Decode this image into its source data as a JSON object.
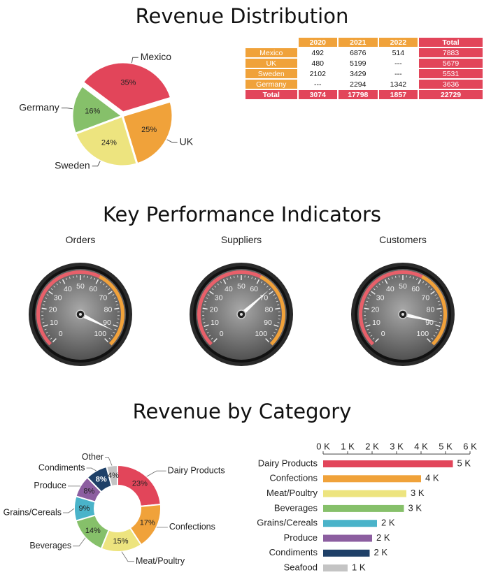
{
  "titles": {
    "revenue": "Revenue Distribution",
    "kpi": "Key Performance Indicators",
    "category": "Revenue by Category"
  },
  "chart_data": [
    {
      "type": "pie",
      "title": "Revenue Distribution",
      "slices": [
        {
          "label": "Mexico",
          "value": 35,
          "color": "#e2455a"
        },
        {
          "label": "UK",
          "value": 25,
          "color": "#f0a23a"
        },
        {
          "label": "Sweden",
          "value": 24,
          "color": "#ede47f"
        },
        {
          "label": "Germany",
          "value": 16,
          "color": "#86c06a"
        }
      ]
    },
    {
      "type": "table",
      "columns": [
        "2020",
        "2021",
        "2022",
        "Total"
      ],
      "rows": [
        {
          "label": "Mexico",
          "values": [
            "492",
            "6876",
            "514"
          ],
          "total": "7883"
        },
        {
          "label": "UK",
          "values": [
            "480",
            "5199",
            "---"
          ],
          "total": "5679"
        },
        {
          "label": "Sweden",
          "values": [
            "2102",
            "3429",
            "---"
          ],
          "total": "5531"
        },
        {
          "label": "Germany",
          "values": [
            "---",
            "2294",
            "1342"
          ],
          "total": "3636"
        }
      ],
      "total_row": {
        "label": "Total",
        "values": [
          "3074",
          "17798",
          "1857"
        ],
        "total": "22729"
      }
    },
    {
      "type": "gauge",
      "title": "Key Performance Indicators",
      "scale": [
        0,
        100
      ],
      "ticks": [
        "0",
        "10",
        "20",
        "30",
        "40",
        "50",
        "60",
        "70",
        "80",
        "90",
        "100"
      ],
      "gauges": [
        {
          "label": "Orders",
          "value": 93
        },
        {
          "label": "Suppliers",
          "value": 68
        },
        {
          "label": "Customers",
          "value": 88
        }
      ]
    },
    {
      "type": "pie",
      "subtype": "donut",
      "title": "Revenue by Category",
      "slices": [
        {
          "label": "Dairy Products",
          "value": 23,
          "color": "#e2455a"
        },
        {
          "label": "Confections",
          "value": 17,
          "color": "#f0a23a"
        },
        {
          "label": "Meat/Poultry",
          "value": 15,
          "color": "#ede47f"
        },
        {
          "label": "Beverages",
          "value": 14,
          "color": "#86c06a"
        },
        {
          "label": "Grains/Cereals",
          "value": 9,
          "color": "#4ab3c9"
        },
        {
          "label": "Produce",
          "value": 8,
          "color": "#8c5ea0"
        },
        {
          "label": "Condiments",
          "value": 8,
          "color": "#1f4068"
        },
        {
          "label": "Other",
          "value": 4,
          "color": "#c4c4c4"
        }
      ]
    },
    {
      "type": "bar",
      "orientation": "horizontal",
      "xlim": [
        0,
        6
      ],
      "xticks": [
        "0 K",
        "1 K",
        "2 K",
        "3 K",
        "4 K",
        "5 K",
        "6 K"
      ],
      "categories": [
        "Dairy Products",
        "Confections",
        "Meat/Poultry",
        "Beverages",
        "Grains/Cereals",
        "Produce",
        "Condiments",
        "Seafood"
      ],
      "values": [
        5.3,
        4.0,
        3.4,
        3.3,
        2.2,
        2.0,
        1.9,
        1.0
      ],
      "value_labels": [
        "5 K",
        "4 K",
        "3 K",
        "3 K",
        "2 K",
        "2 K",
        "2 K",
        "1 K"
      ],
      "colors": [
        "#e2455a",
        "#f0a23a",
        "#ede47f",
        "#86c06a",
        "#4ab3c9",
        "#8c5ea0",
        "#1f4068",
        "#c4c4c4"
      ]
    }
  ]
}
